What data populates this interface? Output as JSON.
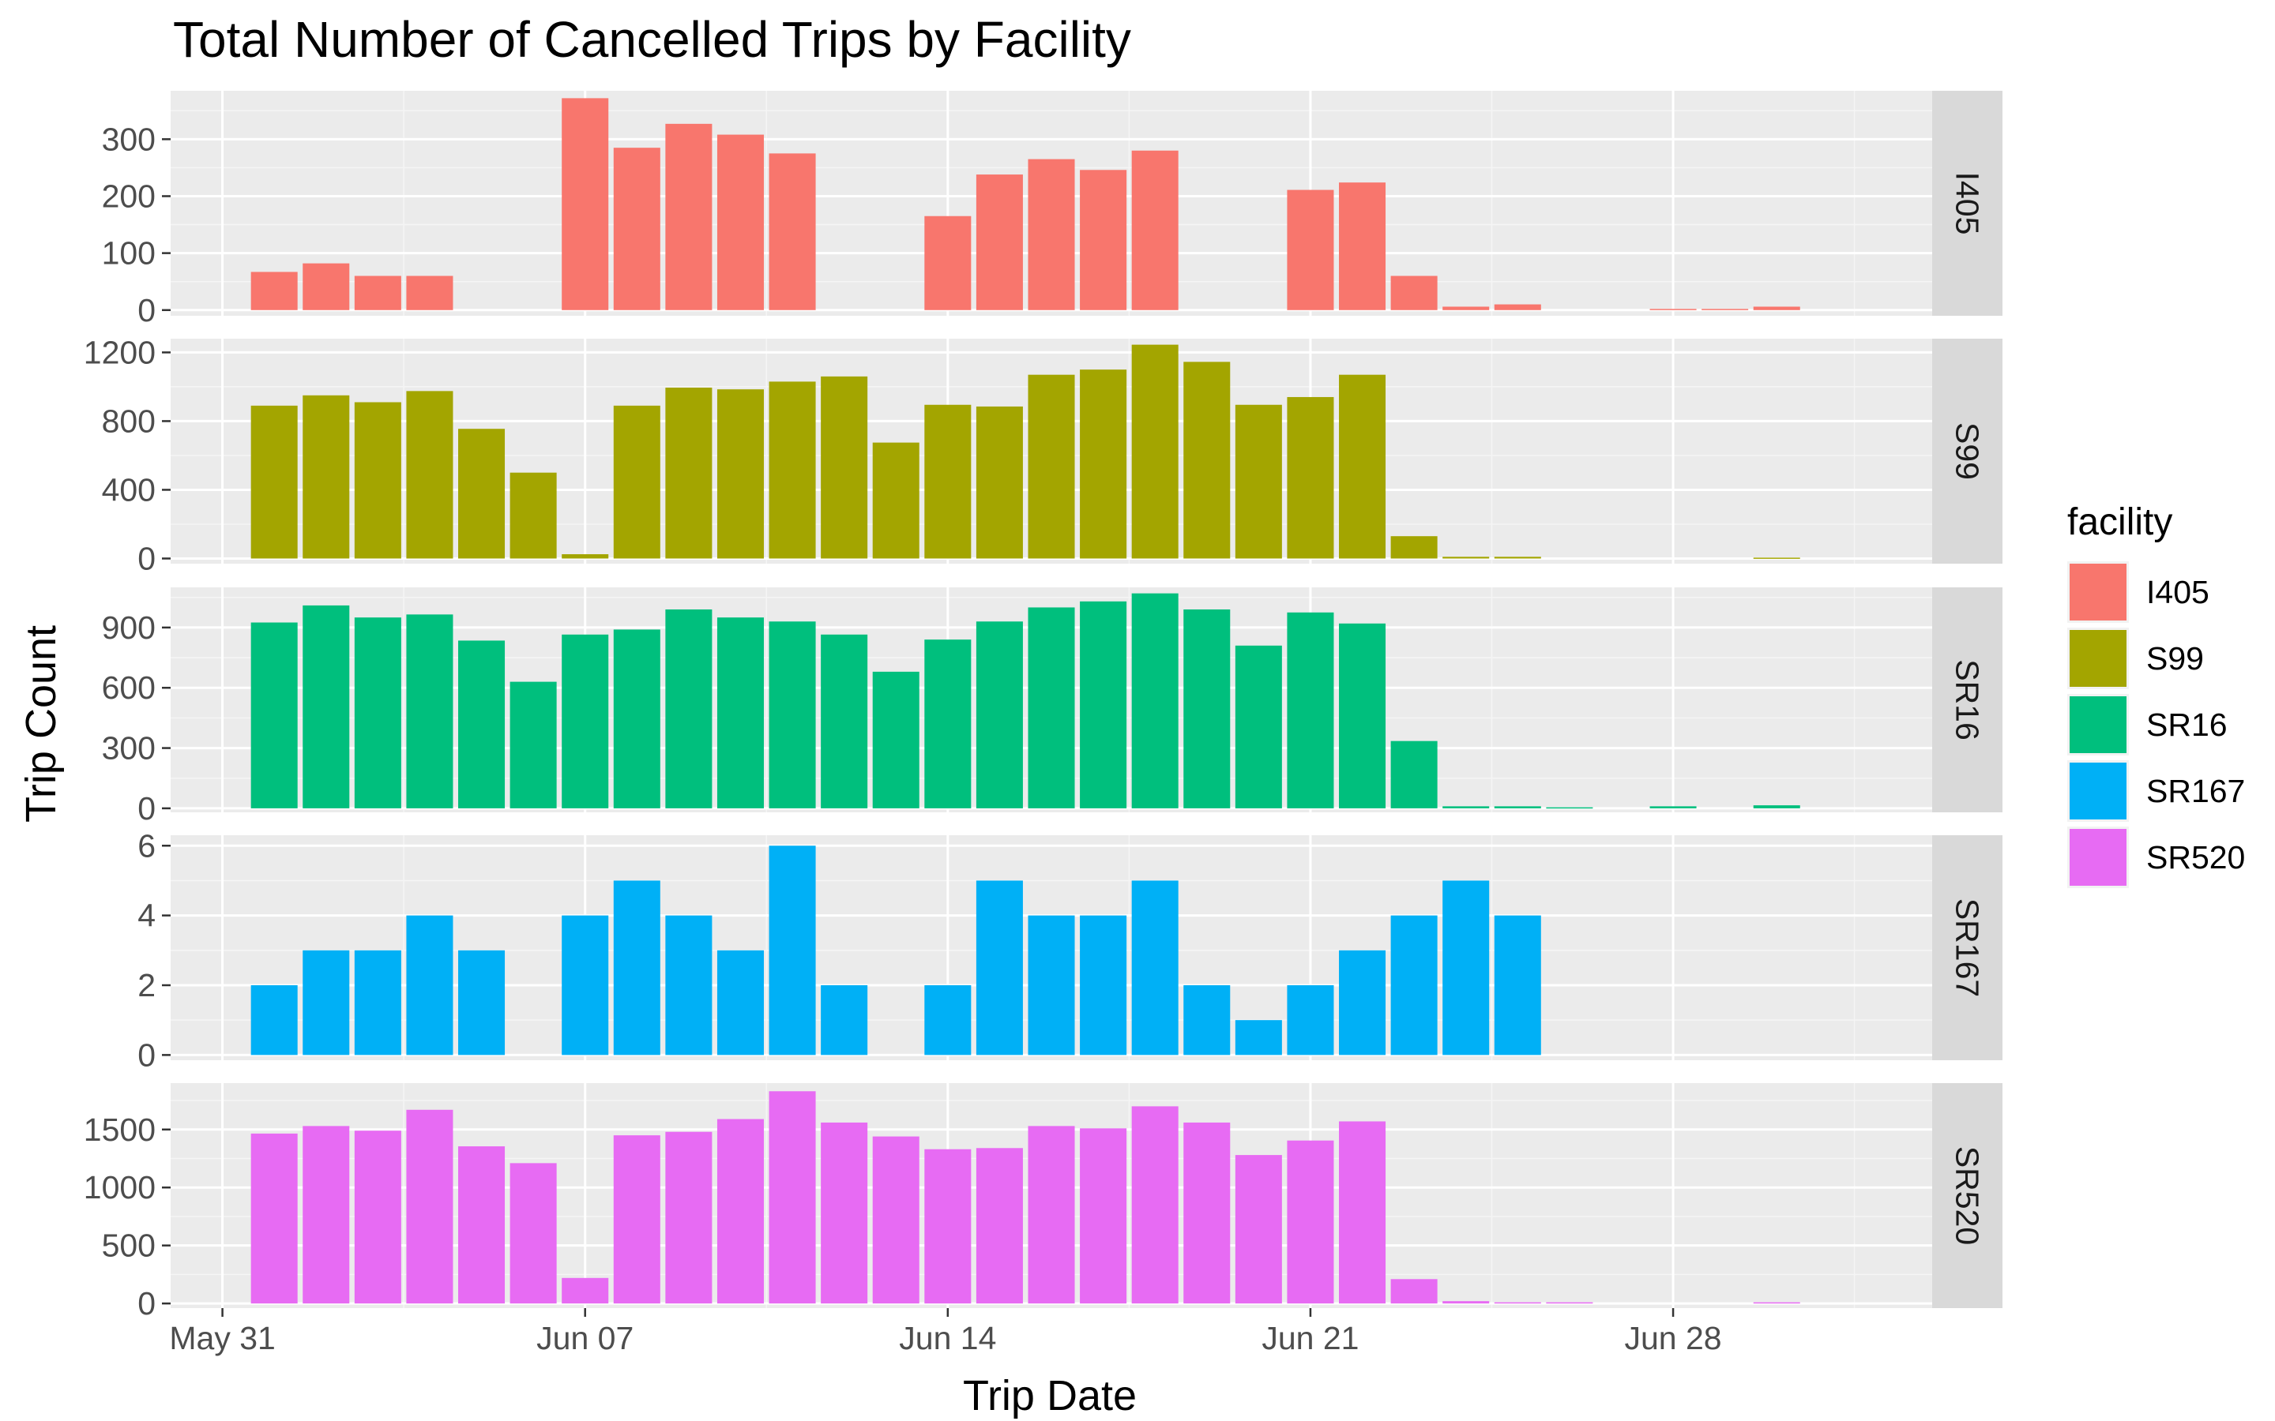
{
  "chart_data": {
    "type": "bar",
    "title": "Total Number of Cancelled Trips by Facility",
    "xlabel": "Trip Date",
    "ylabel": "Trip Count",
    "legend_title": "facility",
    "legend_position": "right",
    "grid": true,
    "x_type": "date",
    "x_range": [
      "2020-05-30",
      "2020-07-03"
    ],
    "x_ticks": [
      {
        "date": "2020-05-31",
        "label": "May 31"
      },
      {
        "date": "2020-06-07",
        "label": "Jun 07"
      },
      {
        "date": "2020-06-14",
        "label": "Jun 14"
      },
      {
        "date": "2020-06-21",
        "label": "Jun 21"
      },
      {
        "date": "2020-06-28",
        "label": "Jun 28"
      }
    ],
    "dates": [
      "2020-06-01",
      "2020-06-02",
      "2020-06-03",
      "2020-06-04",
      "2020-06-05",
      "2020-06-06",
      "2020-06-07",
      "2020-06-08",
      "2020-06-09",
      "2020-06-10",
      "2020-06-11",
      "2020-06-12",
      "2020-06-13",
      "2020-06-14",
      "2020-06-15",
      "2020-06-16",
      "2020-06-17",
      "2020-06-18",
      "2020-06-19",
      "2020-06-20",
      "2020-06-21",
      "2020-06-22",
      "2020-06-23",
      "2020-06-24",
      "2020-06-25",
      "2020-06-26",
      "2020-06-27",
      "2020-06-28",
      "2020-06-29",
      "2020-06-30"
    ],
    "series": [
      {
        "name": "I405",
        "color": "#F8766D",
        "ylim": [
          -10,
          385
        ],
        "y_ticks": [
          0,
          100,
          200,
          300
        ],
        "values": [
          67,
          82,
          60,
          60,
          null,
          null,
          372,
          285,
          327,
          308,
          275,
          null,
          null,
          165,
          238,
          265,
          246,
          280,
          null,
          null,
          211,
          224,
          60,
          6,
          10,
          null,
          null,
          2,
          2,
          6
        ]
      },
      {
        "name": "S99",
        "color": "#A3A500",
        "ylim": [
          -30,
          1280
        ],
        "y_ticks": [
          0,
          400,
          800,
          1200
        ],
        "values": [
          890,
          950,
          910,
          975,
          755,
          500,
          25,
          890,
          995,
          985,
          1030,
          1060,
          675,
          895,
          885,
          1070,
          1100,
          1245,
          1145,
          895,
          940,
          1070,
          130,
          10,
          10,
          null,
          null,
          null,
          null,
          5
        ]
      },
      {
        "name": "SR16",
        "color": "#00BF7D",
        "ylim": [
          -20,
          1100
        ],
        "y_ticks": [
          0,
          300,
          600,
          900
        ],
        "values": [
          925,
          1010,
          950,
          965,
          835,
          630,
          865,
          890,
          990,
          950,
          930,
          865,
          680,
          840,
          930,
          1000,
          1030,
          1070,
          990,
          810,
          975,
          920,
          335,
          10,
          10,
          5,
          null,
          10,
          null,
          15
        ]
      },
      {
        "name": "SR167",
        "color": "#00B0F6",
        "ylim": [
          -0.15,
          6.3
        ],
        "y_ticks": [
          0,
          2,
          4,
          6
        ],
        "values": [
          2,
          3,
          3,
          4,
          3,
          null,
          4,
          5,
          4,
          3,
          6,
          2,
          null,
          2,
          5,
          4,
          4,
          5,
          2,
          1,
          2,
          3,
          4,
          5,
          4,
          null,
          null,
          null,
          null,
          null
        ]
      },
      {
        "name": "SR520",
        "color": "#E76BF3",
        "ylim": [
          -40,
          1900
        ],
        "y_ticks": [
          0,
          500,
          1000,
          1500
        ],
        "y_tick_labels": [
          "0",
          "500",
          "1000",
          "1500"
        ],
        "values": [
          1465,
          1530,
          1490,
          1670,
          1355,
          1210,
          220,
          1450,
          1480,
          1590,
          1830,
          1560,
          1440,
          1330,
          1340,
          1530,
          1510,
          1700,
          1560,
          1280,
          1405,
          1570,
          210,
          20,
          10,
          10,
          null,
          null,
          null,
          10
        ]
      }
    ]
  }
}
